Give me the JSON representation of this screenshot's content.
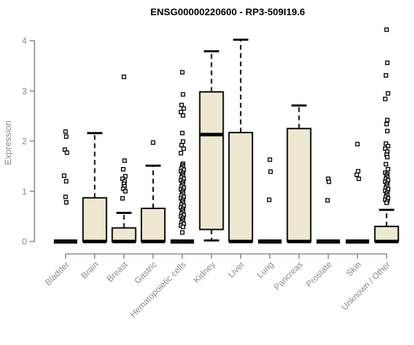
{
  "chart_data": {
    "type": "boxplot",
    "title": "ENSG00000220600 - RP3-509I19.6",
    "ylabel": "Expression",
    "xlabel": "",
    "ylim": [
      0,
      4
    ],
    "yticks": [
      0,
      1,
      2,
      3,
      4
    ],
    "grid": false,
    "colors": {
      "box_fill": "#EDE8CF",
      "box_stroke": "#000000",
      "median": "#000000",
      "whisker": "#000000",
      "outlier_stroke": "#000000",
      "outlier_fill": "#FFFFFF",
      "axis": "#8A8A8A",
      "title": "#000000",
      "background": "#FFFFFF"
    },
    "categories": [
      "Bladder",
      "Brain",
      "Breast",
      "Gastric",
      "Hematopoietic cells",
      "Kidney",
      "Liver",
      "Lung",
      "Pancreas",
      "Prostate",
      "Skin",
      "Unknown / Other"
    ],
    "boxes": [
      {
        "category": "Bladder",
        "q1": 0,
        "median": 0,
        "q3": 0,
        "whisker_low": 0,
        "whisker_high": 0,
        "outliers": [
          2.19,
          2.09,
          1.83,
          1.77,
          1.31,
          1.2,
          0.89,
          0.78
        ]
      },
      {
        "category": "Brain",
        "q1": 0,
        "median": 0,
        "q3": 0.87,
        "whisker_low": 0,
        "whisker_high": 2.16,
        "outliers": []
      },
      {
        "category": "Breast",
        "q1": 0,
        "median": 0,
        "q3": 0.27,
        "whisker_low": 0,
        "whisker_high": 0.57,
        "outliers": [
          3.28,
          1.61,
          1.44,
          1.3,
          1.25,
          1.2,
          1.15,
          1.1,
          1.05,
          1.0,
          0.86
        ]
      },
      {
        "category": "Gastric",
        "q1": 0,
        "median": 0,
        "q3": 0.66,
        "whisker_low": 0,
        "whisker_high": 1.51,
        "outliers": [
          1.97
        ]
      },
      {
        "category": "Hematopoietic cells",
        "q1": 0,
        "median": 0,
        "q3": 0,
        "whisker_low": 0,
        "whisker_high": 0,
        "outliers": [
          3.37,
          2.93,
          2.72,
          2.65,
          2.58,
          2.51,
          2.16,
          1.99,
          1.92,
          1.85,
          1.76,
          1.55,
          1.52,
          1.49,
          1.46,
          1.43,
          1.4,
          1.37,
          1.34,
          1.31,
          1.28,
          1.25,
          1.22,
          1.19,
          1.16,
          1.13,
          1.1,
          1.07,
          1.04,
          1.01,
          0.98,
          0.95,
          0.92,
          0.89,
          0.86,
          0.83,
          0.8,
          0.77,
          0.74,
          0.71,
          0.68,
          0.65,
          0.62,
          0.59,
          0.56,
          0.53,
          0.5,
          0.47,
          0.44,
          0.41,
          0.38,
          0.35,
          0.32,
          0.29,
          0.18
        ]
      },
      {
        "category": "Kidney",
        "q1": 0.24,
        "median": 2.13,
        "q3": 2.98,
        "whisker_low": 0.02,
        "whisker_high": 3.79,
        "outliers": []
      },
      {
        "category": "Liver",
        "q1": 0,
        "median": 0,
        "q3": 2.17,
        "whisker_low": 0,
        "whisker_high": 4.02,
        "outliers": []
      },
      {
        "category": "Lung",
        "q1": 0,
        "median": 0,
        "q3": 0,
        "whisker_low": 0,
        "whisker_high": 0,
        "outliers": [
          1.63,
          1.39,
          0.83
        ]
      },
      {
        "category": "Pancreas",
        "q1": 0,
        "median": 0,
        "q3": 2.25,
        "whisker_low": 0,
        "whisker_high": 2.71,
        "outliers": []
      },
      {
        "category": "Prostate",
        "q1": 0,
        "median": 0,
        "q3": 0,
        "whisker_low": 0,
        "whisker_high": 0,
        "outliers": [
          1.25,
          1.19,
          0.82
        ]
      },
      {
        "category": "Skin",
        "q1": 0,
        "median": 0,
        "q3": 0,
        "whisker_low": 0,
        "whisker_high": 0,
        "outliers": [
          1.94,
          1.4,
          1.33,
          1.25
        ]
      },
      {
        "category": "Unknown / Other",
        "q1": 0,
        "median": 0,
        "q3": 0.3,
        "whisker_low": 0,
        "whisker_high": 0.63,
        "outliers": [
          4.22,
          3.56,
          3.31,
          2.95,
          2.84,
          2.42,
          2.34,
          2.2,
          1.95,
          1.9,
          1.85,
          1.79,
          1.73,
          1.68,
          1.54,
          1.44,
          1.37,
          1.34,
          1.31,
          1.28,
          1.25,
          1.22,
          1.19,
          1.16,
          1.13,
          1.1,
          1.07,
          1.04,
          1.01,
          0.98,
          0.95,
          0.92,
          0.89,
          0.86,
          0.83,
          0.8,
          0.77
        ]
      }
    ]
  }
}
